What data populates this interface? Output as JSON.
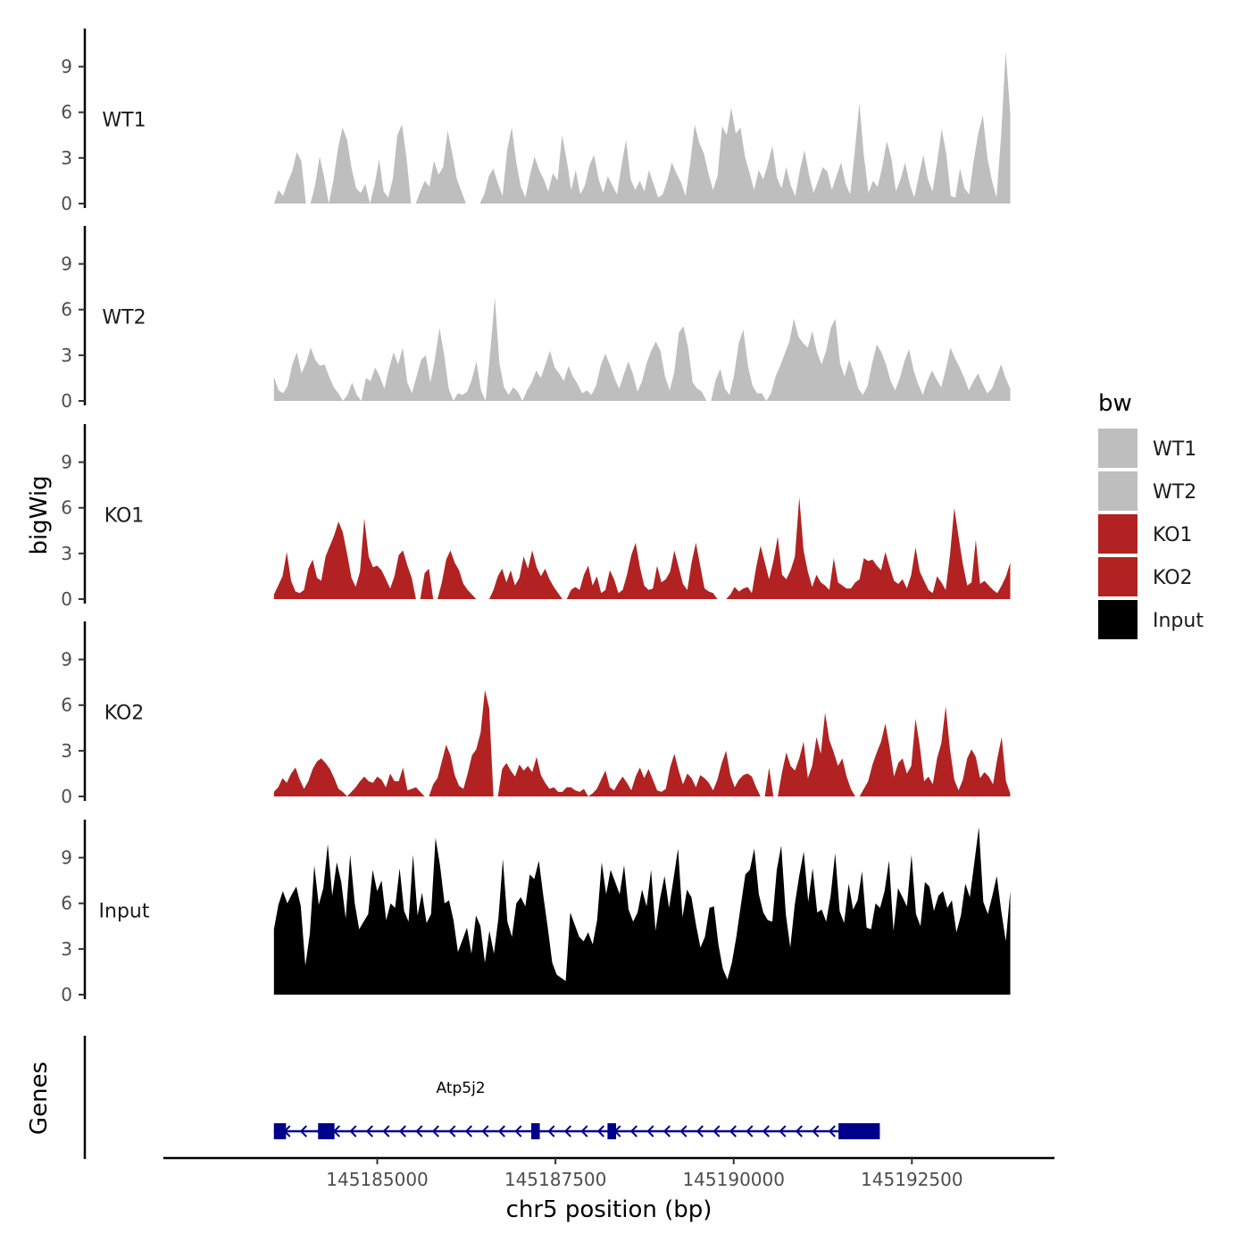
{
  "chart_data": {
    "type": "area",
    "chromosome": "chr5",
    "xlabel": "chr5 position (bp)",
    "ylabel": "bigWig",
    "genes_label": "Genes",
    "xlim": [
      145182000,
      145194500
    ],
    "x_ticks": [
      145185000,
      145187500,
      145190000,
      145192500
    ],
    "x_tick_labels": [
      "145185000",
      "145187500",
      "145190000",
      "145192500"
    ],
    "ylim": [
      0,
      11.5
    ],
    "y_ticks": [
      0,
      3,
      6,
      9
    ],
    "y_tick_labels": [
      "0",
      "3",
      "6",
      "9"
    ],
    "track_range": [
      145183550,
      145193880
    ],
    "legend": {
      "title": "bw",
      "position": "right",
      "entries": [
        {
          "label": "WT1",
          "color": "#BEBEBE"
        },
        {
          "label": "WT2",
          "color": "#BEBEBE"
        },
        {
          "label": "KO1",
          "color": "#B22222"
        },
        {
          "label": "KO2",
          "color": "#B22222"
        },
        {
          "label": "Input",
          "color": "#000000"
        }
      ]
    },
    "series": [
      {
        "name": "WT1",
        "color": "#BEBEBE",
        "values": [
          0,
          0.9,
          0.5,
          1.4,
          2.1,
          3.4,
          2.8,
          0,
          0,
          1.2,
          3.1,
          1.7,
          0,
          1.5,
          3.6,
          5.0,
          4.2,
          2.3,
          1.0,
          0.7,
          1.3,
          0,
          1.2,
          2.9,
          0.8,
          0.4,
          1.6,
          4.5,
          5.2,
          3.0,
          0,
          0,
          0.8,
          1.5,
          1.1,
          2.8,
          1.9,
          2.4,
          4.8,
          3.3,
          1.6,
          0.8,
          0,
          0,
          0,
          0,
          0.6,
          1.8,
          2.3,
          1.3,
          0.5,
          3.5,
          5.0,
          2.7,
          1.1,
          0.4,
          1.9,
          3.1,
          2.2,
          1.6,
          0.8,
          2.0,
          1.5,
          4.5,
          2.9,
          0.9,
          2.2,
          0.6,
          1.2,
          2.5,
          3.2,
          1.6,
          0.7,
          1.8,
          1.2,
          0.6,
          2.5,
          4.2,
          1.6,
          0.9,
          1.5,
          0.8,
          2.2,
          1.3,
          0.4,
          0.6,
          1.5,
          2.7,
          2.0,
          1.4,
          0.5,
          2.6,
          5.2,
          4.0,
          3.3,
          2.0,
          0.9,
          1.8,
          5.1,
          4.5,
          6.3,
          4.6,
          5.0,
          3.1,
          2.0,
          0.9,
          2.2,
          1.6,
          2.6,
          3.8,
          1.7,
          1.0,
          2.4,
          1.2,
          0.5,
          2.2,
          3.5,
          1.9,
          0.7,
          1.5,
          2.4,
          2.1,
          0.9,
          1.8,
          2.7,
          1.3,
          0.6,
          3.4,
          6.6,
          3.1,
          0.7,
          1.5,
          1.1,
          2.4,
          4.1,
          3.0,
          0.8,
          1.6,
          2.7,
          1.3,
          0.4,
          1.8,
          3.2,
          1.6,
          0.8,
          2.7,
          4.9,
          3.3,
          0.5,
          0.4,
          2.3,
          1.0,
          0.6,
          2.8,
          4.6,
          5.8,
          3.0,
          1.5,
          0.4,
          4.5,
          10.0,
          5.9
        ]
      },
      {
        "name": "WT2",
        "color": "#BEBEBE",
        "values": [
          1.6,
          0.7,
          0.5,
          1.0,
          2.4,
          3.2,
          1.8,
          2.5,
          3.5,
          2.7,
          2.3,
          2.4,
          1.6,
          0.9,
          0.5,
          0,
          0.4,
          1.2,
          0.4,
          0,
          1.5,
          1.3,
          2.2,
          1.6,
          0.8,
          2.1,
          3.2,
          2.4,
          3.5,
          1.2,
          0.5,
          1.6,
          2.7,
          3.0,
          1.2,
          2.8,
          4.8,
          3.0,
          0.8,
          0,
          0.5,
          0.4,
          0.6,
          1.4,
          2.6,
          0.7,
          0,
          3.2,
          6.8,
          2.5,
          0.9,
          0.4,
          0.9,
          0.6,
          0,
          0.7,
          1.2,
          2.0,
          1.5,
          2.4,
          3.3,
          2.2,
          1.8,
          1.3,
          2.3,
          1.6,
          1.1,
          0.5,
          0.7,
          0.4,
          1.0,
          2.3,
          3.1,
          2.4,
          1.5,
          0.8,
          1.7,
          2.6,
          1.8,
          0.6,
          1.3,
          2.5,
          3.3,
          3.9,
          3.3,
          1.6,
          0.7,
          1.9,
          4.5,
          4.9,
          3.5,
          1.2,
          0.8,
          0.6,
          0,
          0,
          1.4,
          2.1,
          0.8,
          0.4,
          1.7,
          3.8,
          4.7,
          2.3,
          1.0,
          0.5,
          0.5,
          0,
          0.5,
          1.6,
          2.3,
          3.1,
          3.9,
          5.4,
          4.2,
          3.8,
          3.5,
          4.6,
          3.2,
          2.4,
          3.3,
          4.8,
          5.4,
          2.5,
          1.6,
          2.7,
          1.9,
          0.8,
          0.4,
          1.0,
          2.5,
          3.7,
          3.2,
          2.4,
          1.3,
          0.7,
          1.5,
          2.6,
          3.4,
          2.0,
          1.1,
          0.4,
          1.3,
          2.0,
          1.4,
          0.9,
          2.1,
          3.5,
          2.8,
          2.2,
          1.5,
          0.7,
          1.3,
          1.8,
          1.1,
          0.5,
          0.8,
          1.6,
          2.4,
          1.5,
          0.8
        ]
      },
      {
        "name": "KO1",
        "color": "#B22222",
        "values": [
          0.3,
          0.9,
          1.5,
          3.1,
          1.2,
          0.5,
          0.4,
          0.6,
          2.0,
          2.6,
          1.4,
          1.2,
          2.8,
          3.5,
          4.2,
          5.1,
          4.4,
          3.0,
          1.4,
          0.8,
          1.8,
          5.3,
          2.8,
          2.1,
          2.2,
          1.9,
          1.3,
          0.7,
          1.5,
          2.9,
          3.2,
          2.2,
          1.4,
          0,
          0,
          1.7,
          2.0,
          0,
          0,
          1.1,
          2.6,
          3.2,
          2.4,
          1.9,
          1.0,
          0.6,
          0.3,
          0,
          0,
          0,
          0,
          0.6,
          1.5,
          2.0,
          1.1,
          1.9,
          0.9,
          1.4,
          2.8,
          2.0,
          3.2,
          2.1,
          1.5,
          2.0,
          1.3,
          0.8,
          0.4,
          0,
          0,
          0.6,
          0.8,
          0.6,
          1.6,
          2.2,
          0.9,
          1.5,
          0.4,
          0.6,
          1.9,
          1.3,
          0.4,
          0.6,
          1.6,
          2.9,
          3.7,
          2.1,
          0.9,
          0.6,
          0.7,
          2.2,
          1.1,
          1.3,
          1.8,
          3.2,
          2.1,
          1.0,
          0.6,
          2.4,
          3.7,
          2.2,
          0.7,
          0.5,
          0.4,
          0,
          0,
          0,
          0.3,
          0.8,
          0.5,
          0.7,
          0.8,
          0.4,
          2.1,
          3.5,
          2.4,
          1.3,
          2.5,
          4.1,
          1.6,
          1.3,
          1.9,
          2.8,
          6.7,
          3.2,
          1.8,
          0.8,
          1.6,
          1.1,
          0.9,
          0.6,
          2.7,
          1.1,
          0.9,
          0.7,
          0.7,
          1.1,
          1.3,
          2.7,
          2.5,
          2.6,
          2.2,
          1.9,
          3.1,
          2.1,
          1.2,
          1.0,
          1.3,
          0.7,
          1.6,
          3.4,
          1.8,
          1.2,
          0.6,
          0.4,
          1.5,
          1.1,
          0.6,
          2.9,
          6.0,
          4.1,
          2.3,
          0.9,
          1.1,
          3.9,
          1.0,
          1.2,
          0.9,
          0.6,
          0.4,
          0.9,
          1.5,
          2.4
        ]
      },
      {
        "name": "KO2",
        "color": "#B22222",
        "values": [
          0.3,
          0.6,
          1.2,
          0.9,
          1.5,
          1.9,
          1.1,
          0.5,
          1.0,
          1.8,
          2.3,
          2.5,
          2.2,
          1.8,
          1.2,
          0.5,
          0.3,
          0,
          0.3,
          0.6,
          1.0,
          1.3,
          1.0,
          0.9,
          1.3,
          1.1,
          0.6,
          1.5,
          1.0,
          1.0,
          1.9,
          0.4,
          0.5,
          0.6,
          0.3,
          0,
          0,
          0.8,
          1.2,
          2.3,
          3.4,
          2.7,
          1.4,
          0.7,
          0.5,
          1.5,
          2.7,
          3.1,
          4.2,
          7.0,
          5.8,
          0,
          0,
          1.8,
          2.2,
          1.7,
          1.3,
          2.1,
          1.7,
          2.0,
          1.6,
          2.6,
          1.4,
          0.9,
          0.5,
          0.6,
          0.3,
          0.3,
          0.6,
          0.6,
          0.4,
          0.3,
          0.5,
          0,
          0.2,
          0.5,
          1.1,
          1.7,
          0.6,
          0.4,
          0.9,
          1.3,
          0.9,
          0.4,
          1.3,
          1.9,
          1.2,
          1.8,
          1.1,
          0.4,
          0.3,
          0.5,
          1.9,
          2.8,
          1.7,
          0.8,
          1.5,
          1.2,
          0.6,
          1.4,
          1.2,
          0.9,
          0.4,
          1.1,
          2.2,
          3.0,
          1.4,
          0.6,
          1.1,
          1.4,
          1.5,
          1.3,
          0.6,
          0,
          0,
          1.9,
          0,
          0,
          1.6,
          2.9,
          2.0,
          1.7,
          2.5,
          3.6,
          1.2,
          2.0,
          3.9,
          2.8,
          5.5,
          3.7,
          2.9,
          2.0,
          2.5,
          1.3,
          0.5,
          0,
          0,
          0.5,
          1.0,
          2.1,
          2.9,
          3.6,
          4.8,
          3.2,
          1.3,
          2.2,
          2.5,
          1.5,
          2.0,
          5.1,
          3.3,
          1.0,
          1.3,
          0.8,
          2.5,
          3.5,
          5.9,
          3.1,
          1.1,
          0.4,
          1.1,
          2.5,
          3.1,
          2.6,
          1.2,
          1.6,
          1.3,
          0.8,
          2.5,
          3.9,
          1.0,
          0.2
        ]
      },
      {
        "name": "Input",
        "color": "#000000",
        "values": [
          4.3,
          5.9,
          6.8,
          6.0,
          6.6,
          7.1,
          5.8,
          1.9,
          4.0,
          8.5,
          5.9,
          7.0,
          9.9,
          6.5,
          8.7,
          7.4,
          5.0,
          9.2,
          6.0,
          4.3,
          4.8,
          5.3,
          8.2,
          6.8,
          7.5,
          4.9,
          6.0,
          5.7,
          8.3,
          5.5,
          4.8,
          9.2,
          5.2,
          6.7,
          4.7,
          5.3,
          10.3,
          8.5,
          6.0,
          6.2,
          4.9,
          2.8,
          3.6,
          4.4,
          2.7,
          5.2,
          4.5,
          2.1,
          4.2,
          2.7,
          5.0,
          8.9,
          4.8,
          3.8,
          6.0,
          6.4,
          5.8,
          7.9,
          7.6,
          8.8,
          6.5,
          4.4,
          2.1,
          1.3,
          1.1,
          0.9,
          5.4,
          4.6,
          3.8,
          3.5,
          4.1,
          3.3,
          4.9,
          8.7,
          6.6,
          8.2,
          7.4,
          6.6,
          8.5,
          5.6,
          4.8,
          5.4,
          6.9,
          5.8,
          8.2,
          4.2,
          6.3,
          7.8,
          5.7,
          7.6,
          9.6,
          5.1,
          6.9,
          6.4,
          4.6,
          3.1,
          3.8,
          5.7,
          5.8,
          3.3,
          1.7,
          1.0,
          2.1,
          3.8,
          5.9,
          7.9,
          8.2,
          9.6,
          6.6,
          5.4,
          4.9,
          4.8,
          8.2,
          9.8,
          5.3,
          3.1,
          5.9,
          7.8,
          9.4,
          6.1,
          8.3,
          5.4,
          5.6,
          4.8,
          6.5,
          9.3,
          5.5,
          4.7,
          7.3,
          5.6,
          6.2,
          8.1,
          4.4,
          4.3,
          6.0,
          5.7,
          6.8,
          8.8,
          4.2,
          7.0,
          6.4,
          5.8,
          9.2,
          5.3,
          4.5,
          7.4,
          7.1,
          5.5,
          6.5,
          6.8,
          5.7,
          6.2,
          4.1,
          5.2,
          7.3,
          6.4,
          8.7,
          11.0,
          6.1,
          5.3,
          6.5,
          7.8,
          5.5,
          3.5,
          6.8
        ]
      }
    ],
    "genes": [
      {
        "name": "Atp5j2",
        "strand": "-",
        "start": 145183550,
        "end": 145192050,
        "exons": [
          [
            145183550,
            145183720
          ],
          [
            145184170,
            145184400
          ],
          [
            145187160,
            145187280
          ],
          [
            145188230,
            145188350
          ],
          [
            145191470,
            145192050
          ]
        ]
      }
    ]
  }
}
